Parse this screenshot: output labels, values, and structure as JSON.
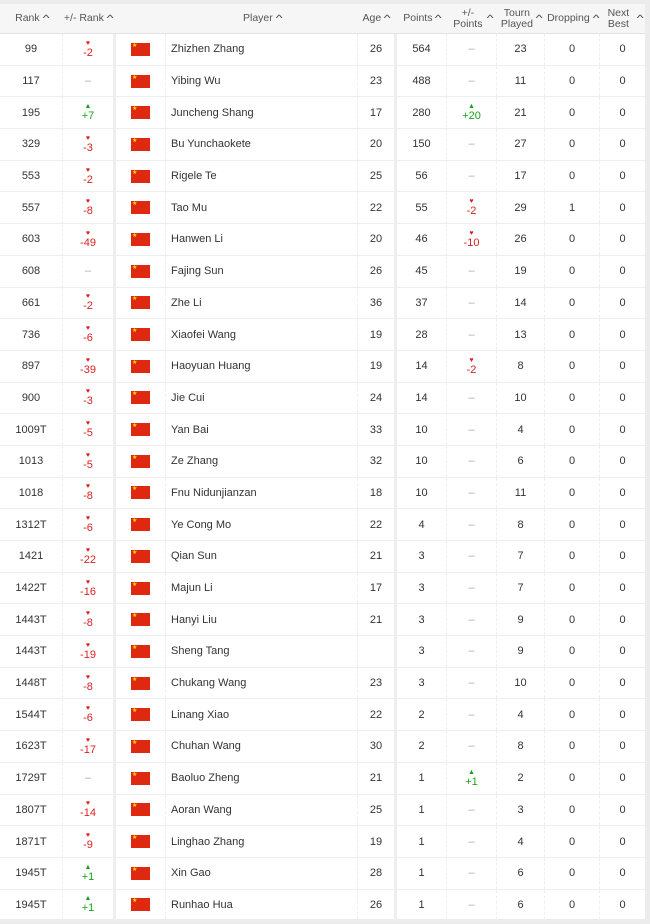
{
  "headers": [
    "Rank",
    "+/- Rank",
    "",
    "Player",
    "Age",
    "Points",
    "+/- Points",
    "Tourn Played",
    "Dropping",
    "Next Best"
  ],
  "sort_icon": "chevron-up-icon",
  "colors": {
    "up": "#1aa31a",
    "down": "#d9221f",
    "flag": "#de2910"
  },
  "rows": [
    [
      "99",
      "-2",
      "Zhizhen Zhang",
      "26",
      "564",
      "–",
      "23",
      "0",
      "0"
    ],
    [
      "117",
      "–",
      "Yibing Wu",
      "23",
      "488",
      "–",
      "11",
      "0",
      "0"
    ],
    [
      "195",
      "+7",
      "Juncheng Shang",
      "17",
      "280",
      "+20",
      "21",
      "0",
      "0"
    ],
    [
      "329",
      "-3",
      "Bu Yunchaokete",
      "20",
      "150",
      "–",
      "27",
      "0",
      "0"
    ],
    [
      "553",
      "-2",
      "Rigele Te",
      "25",
      "56",
      "–",
      "17",
      "0",
      "0"
    ],
    [
      "557",
      "-8",
      "Tao Mu",
      "22",
      "55",
      "-2",
      "29",
      "1",
      "0"
    ],
    [
      "603",
      "-49",
      "Hanwen Li",
      "20",
      "46",
      "-10",
      "26",
      "0",
      "0"
    ],
    [
      "608",
      "–",
      "Fajing Sun",
      "26",
      "45",
      "–",
      "19",
      "0",
      "0"
    ],
    [
      "661",
      "-2",
      "Zhe Li",
      "36",
      "37",
      "–",
      "14",
      "0",
      "0"
    ],
    [
      "736",
      "-6",
      "Xiaofei Wang",
      "19",
      "28",
      "–",
      "13",
      "0",
      "0"
    ],
    [
      "897",
      "-39",
      "Haoyuan Huang",
      "19",
      "14",
      "-2",
      "8",
      "0",
      "0"
    ],
    [
      "900",
      "-3",
      "Jie Cui",
      "24",
      "14",
      "–",
      "10",
      "0",
      "0"
    ],
    [
      "1009T",
      "-5",
      "Yan Bai",
      "33",
      "10",
      "–",
      "4",
      "0",
      "0"
    ],
    [
      "1013",
      "-5",
      "Ze Zhang",
      "32",
      "10",
      "–",
      "6",
      "0",
      "0"
    ],
    [
      "1018",
      "-8",
      "Fnu Nidunjianzan",
      "18",
      "10",
      "–",
      "11",
      "0",
      "0"
    ],
    [
      "1312T",
      "-6",
      "Ye Cong Mo",
      "22",
      "4",
      "–",
      "8",
      "0",
      "0"
    ],
    [
      "1421",
      "-22",
      "Qian Sun",
      "21",
      "3",
      "–",
      "7",
      "0",
      "0"
    ],
    [
      "1422T",
      "-16",
      "Majun Li",
      "17",
      "3",
      "–",
      "7",
      "0",
      "0"
    ],
    [
      "1443T",
      "-8",
      "Hanyi Liu",
      "21",
      "3",
      "–",
      "9",
      "0",
      "0"
    ],
    [
      "1443T",
      "-19",
      "Sheng Tang",
      "",
      "3",
      "–",
      "9",
      "0",
      "0"
    ],
    [
      "1448T",
      "-8",
      "Chukang Wang",
      "23",
      "3",
      "–",
      "10",
      "0",
      "0"
    ],
    [
      "1544T",
      "-6",
      "Linang Xiao",
      "22",
      "2",
      "–",
      "4",
      "0",
      "0"
    ],
    [
      "1623T",
      "-17",
      "Chuhan Wang",
      "30",
      "2",
      "–",
      "8",
      "0",
      "0"
    ],
    [
      "1729T",
      "–",
      "Baoluo Zheng",
      "21",
      "1",
      "+1",
      "2",
      "0",
      "0"
    ],
    [
      "1807T",
      "-14",
      "Aoran Wang",
      "25",
      "1",
      "–",
      "3",
      "0",
      "0"
    ],
    [
      "1871T",
      "-9",
      "Linghao Zhang",
      "19",
      "1",
      "–",
      "4",
      "0",
      "0"
    ],
    [
      "1945T",
      "+1",
      "Xin Gao",
      "28",
      "1",
      "–",
      "6",
      "0",
      "0"
    ],
    [
      "1945T",
      "+1",
      "Runhao Hua",
      "26",
      "1",
      "–",
      "6",
      "0",
      "0"
    ]
  ]
}
